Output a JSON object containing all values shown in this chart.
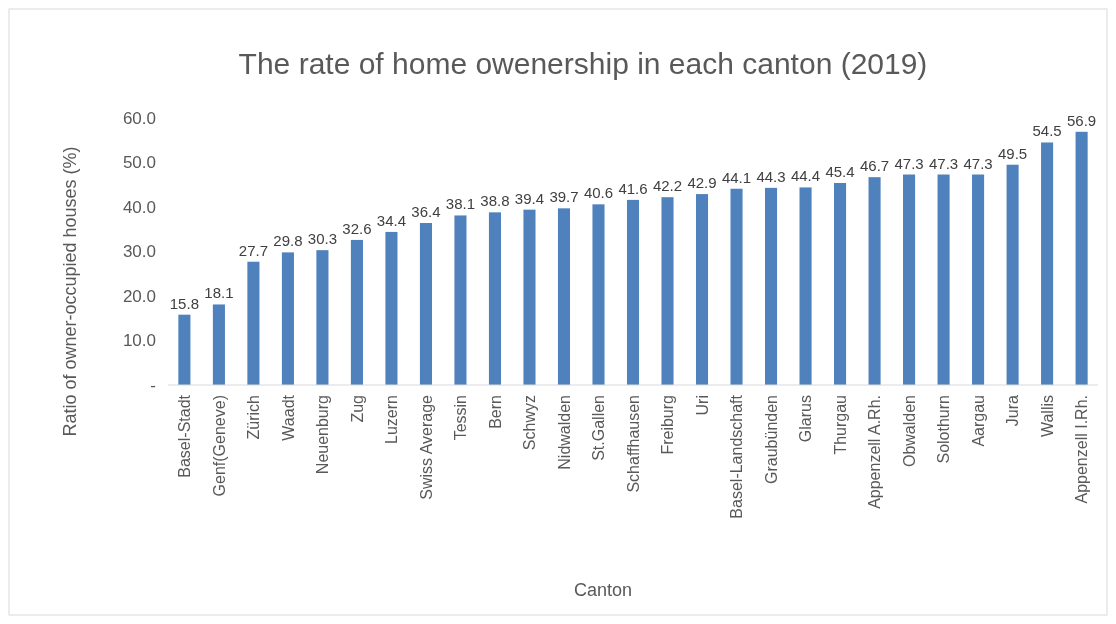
{
  "chart_data": {
    "type": "bar",
    "title": "The rate of home owenership in each canton (2019)",
    "xlabel": "Canton",
    "ylabel": "Ratio of owner-occupied houses (%)",
    "categories": [
      "Basel-Stadt",
      "Genf(Geneve)",
      "Zürich",
      "Waadt",
      "Neuenburg",
      "Zug",
      "Luzern",
      "Swiss Average",
      "Tessin",
      "Bern",
      "Schwyz",
      "Nidwalden",
      "St.Gallen",
      "Schaffhausen",
      "Freiburg",
      "Uri",
      "Basel-Landschaft",
      "Graubünden",
      "Glarus",
      "Thurgau",
      "Appenzell A.Rh.",
      "Obwalden",
      "Solothurn",
      "Aargau",
      "Jura",
      "Wallis",
      "Appenzell I.Rh."
    ],
    "values": [
      15.8,
      18.1,
      27.7,
      29.8,
      30.3,
      32.6,
      34.4,
      36.4,
      38.1,
      38.8,
      39.4,
      39.7,
      40.6,
      41.6,
      42.2,
      42.9,
      44.1,
      44.3,
      44.4,
      45.4,
      46.7,
      47.3,
      47.3,
      47.3,
      49.5,
      54.5,
      56.9
    ],
    "color": "#4f81bd",
    "ylim": [
      0,
      60
    ],
    "yticks": [
      {
        "value": 0,
        "label": "-"
      },
      {
        "value": 10,
        "label": "10.0"
      },
      {
        "value": 20,
        "label": "20.0"
      },
      {
        "value": 30,
        "label": "30.0"
      },
      {
        "value": 40,
        "label": "40.0"
      },
      {
        "value": 50,
        "label": "50.0"
      },
      {
        "value": 60,
        "label": "60.0"
      }
    ],
    "data_labels": true,
    "grid": false
  }
}
